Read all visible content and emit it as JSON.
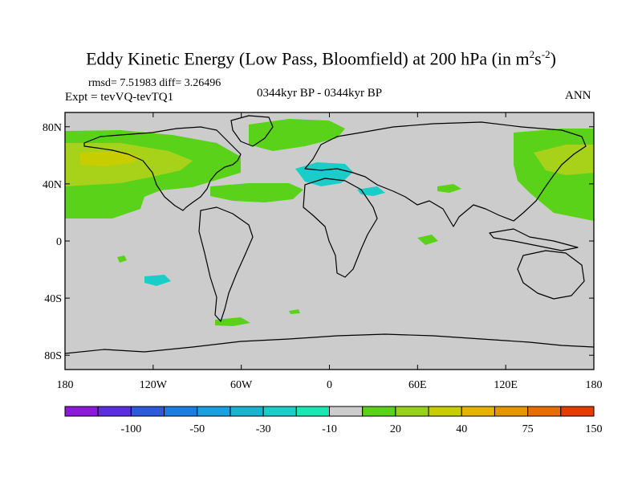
{
  "title": {
    "main": "Eddy Kinetic Energy (Low Pass, Bloomfield) at 200 hPa (in m",
    "sup1": "2",
    "mid": "s",
    "sup2": "-2",
    "end": ")"
  },
  "stats": "rmsd= 7.51983 diff= 3.26496",
  "expt": "Expt = tevVQ-tevTQ1",
  "period": "0344kyr BP - 0344kyr BP",
  "season": "ANN",
  "map": {
    "projection": "cylindrical equidistant",
    "lon_range": [
      -180,
      180
    ],
    "lat_range": [
      -90,
      90
    ],
    "background_color": "#cccccc",
    "x_ticks": [
      {
        "value": -180,
        "label": "180"
      },
      {
        "value": -120,
        "label": "120W"
      },
      {
        "value": -60,
        "label": "60W"
      },
      {
        "value": 0,
        "label": "0"
      },
      {
        "value": 60,
        "label": "60E"
      },
      {
        "value": 120,
        "label": "120E"
      },
      {
        "value": 180,
        "label": "180"
      }
    ],
    "y_ticks": [
      {
        "value": 80,
        "label": "80N"
      },
      {
        "value": 40,
        "label": "40N"
      },
      {
        "value": 0,
        "label": "0"
      },
      {
        "value": -40,
        "label": "40S"
      },
      {
        "value": -80,
        "label": "80S"
      }
    ]
  },
  "colorbar": {
    "colors": [
      "#8c1ad9",
      "#5a2ee0",
      "#2c5ad9",
      "#1a7ee0",
      "#1aa0e0",
      "#1ab4d2",
      "#1acdc8",
      "#1ae6b4",
      "#cccccc",
      "#5ad21a",
      "#96d21a",
      "#c8cd00",
      "#e6b400",
      "#e69600",
      "#e66e00",
      "#e63c00"
    ],
    "labels": [
      {
        "after_box": 2,
        "text": "-100"
      },
      {
        "after_box": 4,
        "text": "-50"
      },
      {
        "after_box": 6,
        "text": "-30"
      },
      {
        "after_box": 8,
        "text": "-10"
      },
      {
        "after_box": 10,
        "text": "20"
      },
      {
        "after_box": 12,
        "text": "40"
      },
      {
        "after_box": 14,
        "text": "75"
      },
      {
        "after_box": 16,
        "text": "150"
      }
    ]
  }
}
